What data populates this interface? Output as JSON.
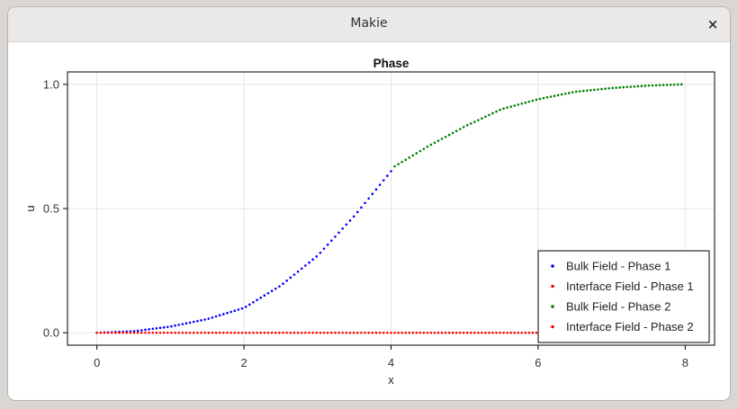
{
  "window": {
    "title": "Makie",
    "close_glyph": "×"
  },
  "chart_data": {
    "type": "scatter",
    "title": "Phase",
    "xlabel": "x",
    "ylabel": "u",
    "xlim": [
      -0.4,
      8.4
    ],
    "ylim": [
      -0.05,
      1.05
    ],
    "xticks": [
      0,
      2,
      4,
      6,
      8
    ],
    "xtick_labels": [
      "0",
      "2",
      "4",
      "6",
      "8"
    ],
    "yticks": [
      0.0,
      0.5,
      1.0
    ],
    "ytick_labels": [
      "0.0",
      "0.5",
      "1.0"
    ],
    "grid": true,
    "legend_position": "bottom-right",
    "series": [
      {
        "name": "Bulk Field - Phase 1",
        "color": "#0000ff",
        "x_range": [
          0.0,
          4.0
        ],
        "n_points": 80,
        "x": [
          0.0,
          0.5,
          1.0,
          1.5,
          2.0,
          2.5,
          3.0,
          3.5,
          4.0
        ],
        "y": [
          0.0,
          0.006,
          0.025,
          0.055,
          0.1,
          0.19,
          0.31,
          0.47,
          0.65
        ]
      },
      {
        "name": "Interface Field - Phase 1",
        "color": "#ff0000",
        "x_range": [
          0.0,
          4.0
        ],
        "n_points": 80,
        "x": [
          0.0,
          4.0
        ],
        "y": [
          0.0,
          0.0
        ]
      },
      {
        "name": "Bulk Field - Phase 2",
        "color": "#008000",
        "x_range": [
          4.05,
          7.95
        ],
        "n_points": 80,
        "x": [
          4.05,
          4.5,
          5.0,
          5.5,
          6.0,
          6.5,
          7.0,
          7.5,
          7.95
        ],
        "y": [
          0.67,
          0.75,
          0.83,
          0.9,
          0.94,
          0.97,
          0.985,
          0.995,
          1.0
        ]
      },
      {
        "name": "Interface Field - Phase 2",
        "color": "#ff0000",
        "x_range": [
          4.05,
          7.95
        ],
        "n_points": 80,
        "x": [
          4.05,
          7.95
        ],
        "y": [
          0.0,
          0.0
        ]
      }
    ]
  }
}
